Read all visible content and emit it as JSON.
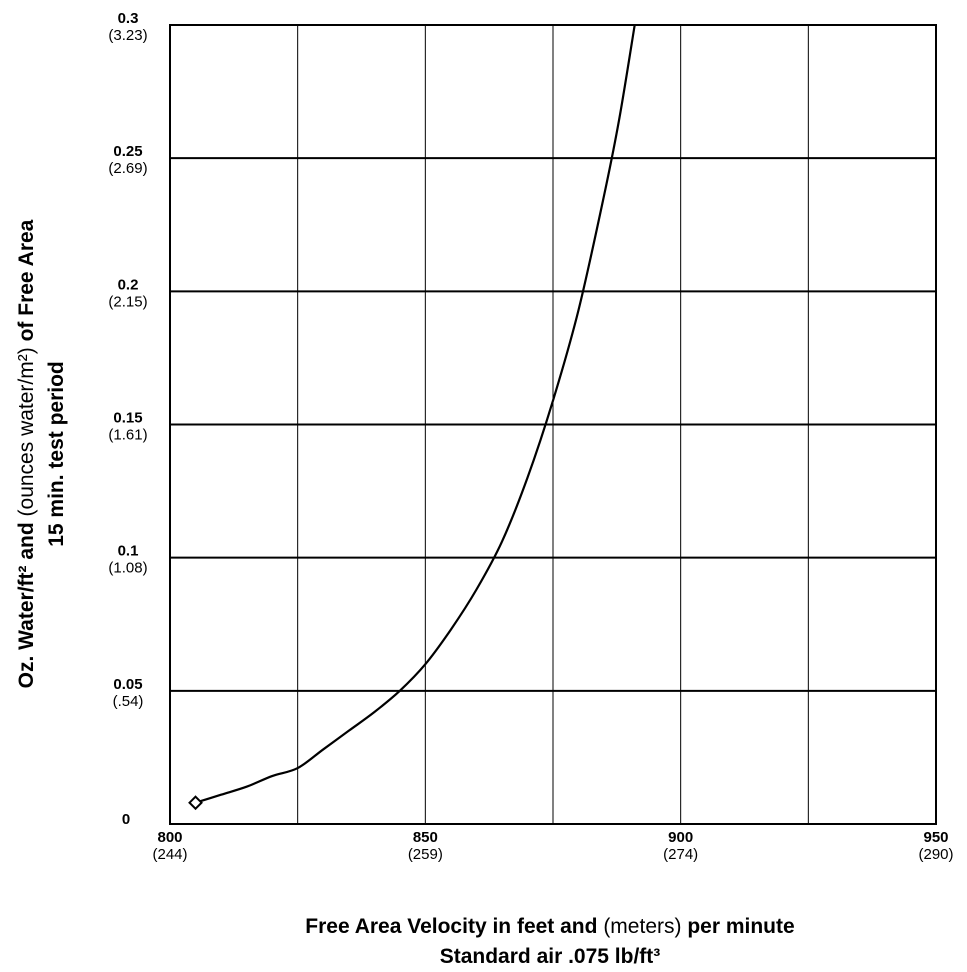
{
  "chart_data": {
    "type": "line",
    "x_ticks": [
      {
        "value": 800,
        "label": "800",
        "sub": "(244)"
      },
      {
        "value": 850,
        "label": "850",
        "sub": "(259)"
      },
      {
        "value": 900,
        "label": "900",
        "sub": "(274)"
      },
      {
        "value": 950,
        "label": "950",
        "sub": "(290)"
      }
    ],
    "x_minor_gridlines": [
      825,
      875,
      925
    ],
    "y_ticks": [
      {
        "value": 0,
        "label": "0",
        "sub": ""
      },
      {
        "value": 0.05,
        "label": "0.05",
        "sub": "(.54)"
      },
      {
        "value": 0.1,
        "label": "0.1",
        "sub": "(1.08)"
      },
      {
        "value": 0.15,
        "label": "0.15",
        "sub": "(1.61)"
      },
      {
        "value": 0.2,
        "label": "0.2",
        "sub": "(2.15)"
      },
      {
        "value": 0.25,
        "label": "0.25",
        "sub": "(2.69)"
      },
      {
        "value": 0.3,
        "label": "0.3",
        "sub": "(3.23)"
      }
    ],
    "xlim": [
      800,
      950
    ],
    "ylim": [
      0,
      0.3
    ],
    "grid": true,
    "xlabel": {
      "part1": "Free Area Velocity in feet and",
      "part2": "(meters)",
      "part3": "per minute",
      "line2": "Standard air .075 lb/ft³"
    },
    "ylabel": {
      "part1": "Oz. Water/ft² and",
      "part2": "(ounces water/m²)",
      "part3": "of Free Area",
      "line2": "15 min. test period"
    },
    "series": [
      {
        "marker": "diamond",
        "start_point": {
          "x": 805,
          "y": 0.008
        },
        "points": [
          {
            "x": 805,
            "y": 0.008
          },
          {
            "x": 810,
            "y": 0.011
          },
          {
            "x": 815,
            "y": 0.014
          },
          {
            "x": 820,
            "y": 0.018
          },
          {
            "x": 825,
            "y": 0.021
          },
          {
            "x": 830,
            "y": 0.028
          },
          {
            "x": 835,
            "y": 0.035
          },
          {
            "x": 840,
            "y": 0.042
          },
          {
            "x": 845,
            "y": 0.05
          },
          {
            "x": 850,
            "y": 0.06
          },
          {
            "x": 855,
            "y": 0.073
          },
          {
            "x": 860,
            "y": 0.088
          },
          {
            "x": 865,
            "y": 0.106
          },
          {
            "x": 870,
            "y": 0.13
          },
          {
            "x": 875,
            "y": 0.159
          },
          {
            "x": 880,
            "y": 0.193
          },
          {
            "x": 885,
            "y": 0.236
          },
          {
            "x": 888,
            "y": 0.265
          },
          {
            "x": 891,
            "y": 0.3
          }
        ]
      }
    ]
  }
}
